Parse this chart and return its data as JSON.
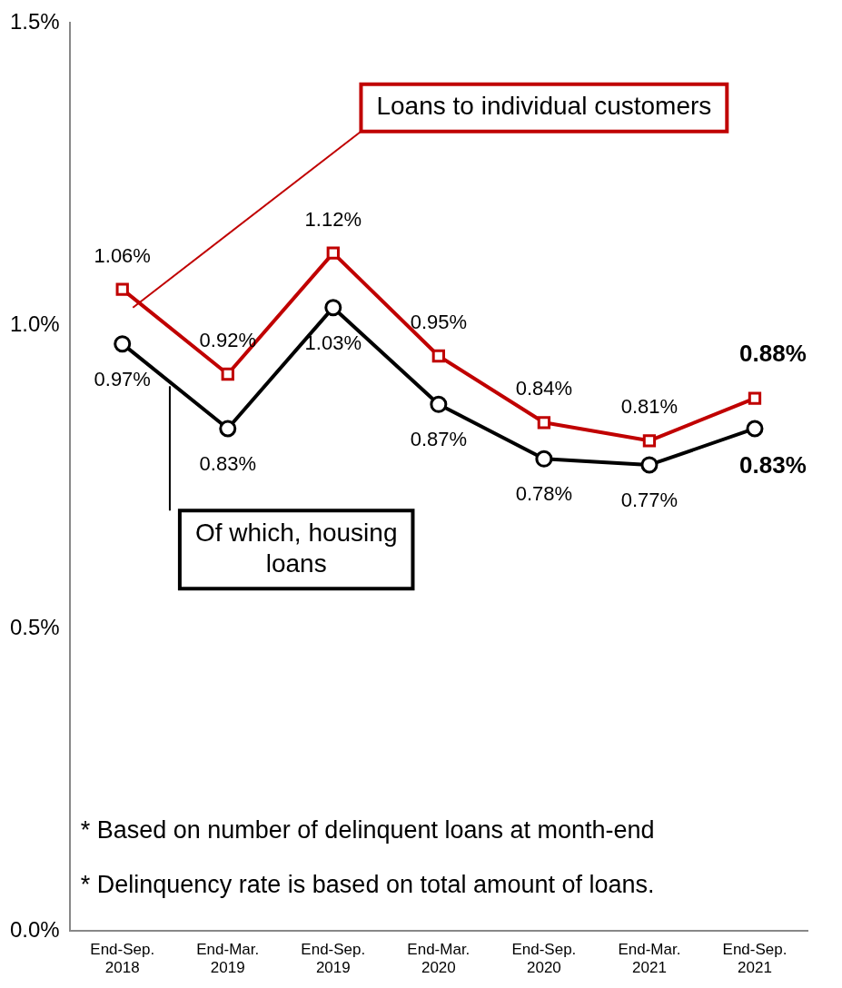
{
  "chart_data": {
    "type": "line",
    "categories": [
      "End-Sep. 2018",
      "End-Mar. 2019",
      "End-Sep. 2019",
      "End-Mar. 2020",
      "End-Sep. 2020",
      "End-Mar. 2021",
      "End-Sep. 2021"
    ],
    "series": [
      {
        "name": "Loans to individual customers",
        "color": "#c00000",
        "marker": "square",
        "values": [
          1.06,
          0.92,
          1.12,
          0.95,
          0.84,
          0.81,
          0.88
        ],
        "value_labels": [
          "1.06%",
          "0.92%",
          "1.12%",
          "0.95%",
          "0.84%",
          "0.81%",
          "0.88%"
        ]
      },
      {
        "name": "Of which, housing loans",
        "color": "#000000",
        "marker": "circle",
        "values": [
          0.97,
          0.83,
          1.03,
          0.87,
          0.78,
          0.77,
          0.83
        ],
        "value_labels": [
          "0.97%",
          "0.83%",
          "1.03%",
          "0.87%",
          "0.78%",
          "0.77%",
          "0.83%"
        ]
      }
    ],
    "ylim": [
      0,
      1.5
    ],
    "yticks": [
      {
        "value": 0,
        "label": "0.0%"
      },
      {
        "value": 0.5,
        "label": "0.5%"
      },
      {
        "value": 1,
        "label": "1.0%"
      },
      {
        "value": 1.5,
        "label": "1.5%"
      }
    ],
    "grid": false,
    "line_style": "solid",
    "annotations": [
      "* Based on number of delinquent loans at month-end",
      "* Delinquency rate is based on total amount of loans."
    ]
  }
}
